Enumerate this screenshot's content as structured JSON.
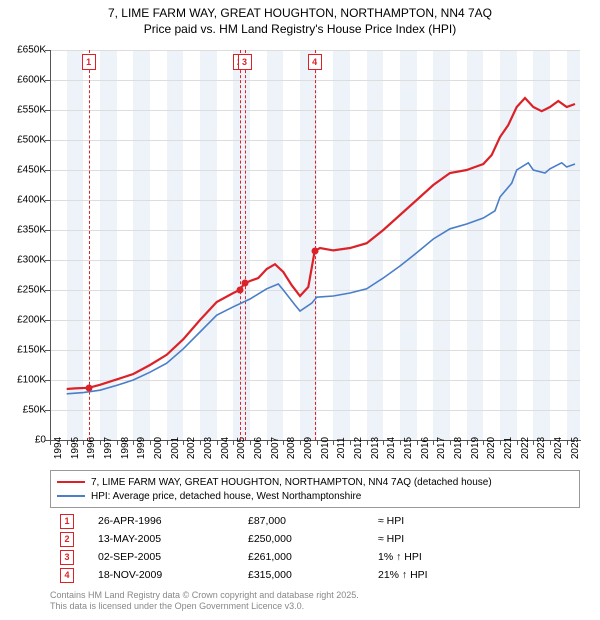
{
  "title_line1": "7, LIME FARM WAY, GREAT HOUGHTON, NORTHAMPTON, NN4 7AQ",
  "title_line2": "Price paid vs. HM Land Registry's House Price Index (HPI)",
  "chart": {
    "type": "line",
    "background_color": "#ffffff",
    "shade_color": "#eef2f9",
    "grid_color": "#dddddd",
    "axis_color": "#555555",
    "xlim": [
      1994,
      2025.8
    ],
    "ylim": [
      0,
      650000
    ],
    "ytick_step": 50000,
    "yticks": [
      {
        "v": 0,
        "label": "£0"
      },
      {
        "v": 50000,
        "label": "£50K"
      },
      {
        "v": 100000,
        "label": "£100K"
      },
      {
        "v": 150000,
        "label": "£150K"
      },
      {
        "v": 200000,
        "label": "£200K"
      },
      {
        "v": 250000,
        "label": "£250K"
      },
      {
        "v": 300000,
        "label": "£300K"
      },
      {
        "v": 350000,
        "label": "£350K"
      },
      {
        "v": 400000,
        "label": "£400K"
      },
      {
        "v": 450000,
        "label": "£450K"
      },
      {
        "v": 500000,
        "label": "£500K"
      },
      {
        "v": 550000,
        "label": "£550K"
      },
      {
        "v": 600000,
        "label": "£600K"
      },
      {
        "v": 650000,
        "label": "£650K"
      }
    ],
    "xticks": [
      1994,
      1995,
      1996,
      1997,
      1998,
      1999,
      2000,
      2001,
      2002,
      2003,
      2004,
      2005,
      2006,
      2007,
      2008,
      2009,
      2010,
      2011,
      2012,
      2013,
      2014,
      2015,
      2016,
      2017,
      2018,
      2019,
      2020,
      2021,
      2022,
      2023,
      2024,
      2025
    ],
    "shaded_years": [
      1995,
      1997,
      1999,
      2001,
      2003,
      2005,
      2007,
      2009,
      2011,
      2013,
      2015,
      2017,
      2019,
      2021,
      2023,
      2025
    ],
    "markers": [
      {
        "n": "1",
        "x": 1996.32,
        "y": 87000
      },
      {
        "n": "2",
        "x": 2005.37,
        "y": 250000
      },
      {
        "n": "3",
        "x": 2005.67,
        "y": 261000
      },
      {
        "n": "4",
        "x": 2009.88,
        "y": 315000
      }
    ],
    "series_red": {
      "color": "#da2228",
      "width": 2.2,
      "points": [
        [
          1995.0,
          85000
        ],
        [
          1995.5,
          86000
        ],
        [
          1996.32,
          87000
        ],
        [
          1997,
          92000
        ],
        [
          1998,
          101000
        ],
        [
          1999,
          110000
        ],
        [
          2000,
          125000
        ],
        [
          2001,
          142000
        ],
        [
          2002,
          168000
        ],
        [
          2003,
          200000
        ],
        [
          2004,
          230000
        ],
        [
          2005.0,
          245000
        ],
        [
          2005.37,
          250000
        ],
        [
          2005.67,
          261000
        ],
        [
          2006,
          265000
        ],
        [
          2006.5,
          270000
        ],
        [
          2007,
          285000
        ],
        [
          2007.5,
          293000
        ],
        [
          2008,
          280000
        ],
        [
          2008.5,
          258000
        ],
        [
          2009,
          240000
        ],
        [
          2009.5,
          255000
        ],
        [
          2009.88,
          315000
        ],
        [
          2010.2,
          320000
        ],
        [
          2011,
          316000
        ],
        [
          2012,
          320000
        ],
        [
          2013,
          328000
        ],
        [
          2014,
          350000
        ],
        [
          2015,
          375000
        ],
        [
          2016,
          400000
        ],
        [
          2017,
          425000
        ],
        [
          2018,
          445000
        ],
        [
          2019,
          450000
        ],
        [
          2019.5,
          455000
        ],
        [
          2020,
          460000
        ],
        [
          2020.5,
          475000
        ],
        [
          2021,
          505000
        ],
        [
          2021.5,
          525000
        ],
        [
          2022,
          555000
        ],
        [
          2022.5,
          570000
        ],
        [
          2023,
          555000
        ],
        [
          2023.5,
          548000
        ],
        [
          2024,
          555000
        ],
        [
          2024.5,
          565000
        ],
        [
          2025,
          555000
        ],
        [
          2025.5,
          560000
        ]
      ]
    },
    "series_blue": {
      "color": "#4a7ec8",
      "width": 1.6,
      "points": [
        [
          1995.0,
          77000
        ],
        [
          1996,
          79000
        ],
        [
          1997,
          83000
        ],
        [
          1998,
          91000
        ],
        [
          1999,
          100000
        ],
        [
          2000,
          113000
        ],
        [
          2001,
          128000
        ],
        [
          2002,
          152000
        ],
        [
          2003,
          180000
        ],
        [
          2004,
          208000
        ],
        [
          2005,
          222000
        ],
        [
          2006,
          235000
        ],
        [
          2007,
          252000
        ],
        [
          2007.7,
          260000
        ],
        [
          2008,
          250000
        ],
        [
          2008.7,
          225000
        ],
        [
          2009,
          215000
        ],
        [
          2009.7,
          228000
        ],
        [
          2010,
          238000
        ],
        [
          2011,
          240000
        ],
        [
          2012,
          245000
        ],
        [
          2013,
          252000
        ],
        [
          2014,
          270000
        ],
        [
          2015,
          290000
        ],
        [
          2016,
          312000
        ],
        [
          2017,
          335000
        ],
        [
          2018,
          352000
        ],
        [
          2019,
          360000
        ],
        [
          2020,
          370000
        ],
        [
          2020.7,
          382000
        ],
        [
          2021,
          405000
        ],
        [
          2021.7,
          428000
        ],
        [
          2022,
          450000
        ],
        [
          2022.7,
          462000
        ],
        [
          2023,
          450000
        ],
        [
          2023.7,
          445000
        ],
        [
          2024,
          452000
        ],
        [
          2024.7,
          462000
        ],
        [
          2025,
          455000
        ],
        [
          2025.5,
          460000
        ]
      ]
    }
  },
  "legend": {
    "items": [
      {
        "color": "red",
        "label": "7, LIME FARM WAY, GREAT HOUGHTON, NORTHAMPTON, NN4 7AQ (detached house)"
      },
      {
        "color": "blue",
        "label": "HPI: Average price, detached house, West Northamptonshire"
      }
    ]
  },
  "sales": [
    {
      "n": "1",
      "date": "26-APR-1996",
      "price": "£87,000",
      "delta": "≈ HPI"
    },
    {
      "n": "2",
      "date": "13-MAY-2005",
      "price": "£250,000",
      "delta": "≈ HPI"
    },
    {
      "n": "3",
      "date": "02-SEP-2005",
      "price": "£261,000",
      "delta": "1% ↑ HPI"
    },
    {
      "n": "4",
      "date": "18-NOV-2009",
      "price": "£315,000",
      "delta": "21% ↑ HPI"
    }
  ],
  "footer": {
    "line1": "Contains HM Land Registry data © Crown copyright and database right 2025.",
    "line2": "This data is licensed under the Open Government Licence v3.0."
  }
}
